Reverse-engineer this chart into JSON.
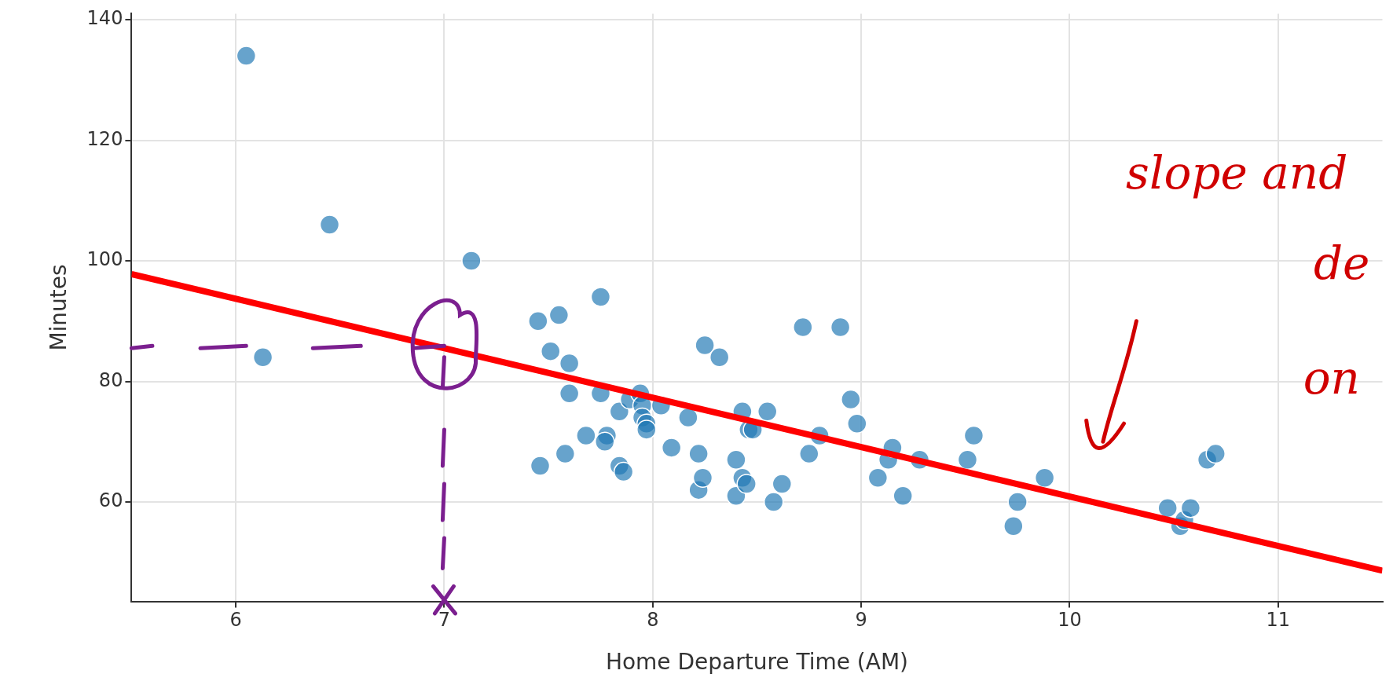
{
  "chart_data": {
    "type": "scatter",
    "xlabel": "Home Departure Time (AM)",
    "ylabel": "Minutes",
    "xlim": [
      5.5,
      11.5
    ],
    "ylim": [
      43.5,
      141
    ],
    "xticks": [
      6,
      7,
      8,
      9,
      10,
      11
    ],
    "yticks": [
      60,
      80,
      100,
      120,
      140
    ],
    "grid": true,
    "legend": false,
    "marker": "circle",
    "annotations": [
      "slope and",
      "de",
      "on"
    ],
    "series": [
      {
        "type": "scatter",
        "color": "#1f77b4",
        "x": [
          6.05,
          6.13,
          6.45,
          7.13,
          7.45,
          7.46,
          7.51,
          7.55,
          7.6,
          7.6,
          7.58,
          7.68,
          7.75,
          7.75,
          7.78,
          7.77,
          7.84,
          7.84,
          7.86,
          7.89,
          7.94,
          7.95,
          7.95,
          7.97,
          7.97,
          8.04,
          8.09,
          8.17,
          8.22,
          8.22,
          8.24,
          8.25,
          8.32,
          8.4,
          8.4,
          8.43,
          8.43,
          8.45,
          8.46,
          8.48,
          8.55,
          8.58,
          8.62,
          8.72,
          8.75,
          8.8,
          8.9,
          8.95,
          8.98,
          9.08,
          9.13,
          9.15,
          9.2,
          9.28,
          9.51,
          9.54,
          9.73,
          9.75,
          9.88,
          10.47,
          10.53,
          10.55,
          10.58,
          10.66,
          10.7
        ],
        "values": [
          134,
          84,
          106,
          100,
          90,
          66,
          85,
          91,
          83,
          78,
          68,
          71,
          94,
          78,
          71,
          70,
          75,
          66,
          65,
          77,
          78,
          76,
          74,
          73,
          72,
          76,
          69,
          74,
          68,
          62,
          64,
          86,
          84,
          67,
          61,
          75,
          64,
          63,
          72,
          72,
          75,
          60,
          63,
          89,
          68,
          71,
          89,
          77,
          73,
          64,
          67,
          69,
          61,
          67,
          67,
          71,
          56,
          60,
          64,
          59,
          56,
          57,
          59,
          67,
          68
        ]
      },
      {
        "type": "line",
        "color": "#ff0000",
        "line_style": "solid",
        "marker": "none",
        "x": [
          5.5,
          11.5
        ],
        "values": [
          97.8,
          48.6
        ]
      }
    ]
  }
}
